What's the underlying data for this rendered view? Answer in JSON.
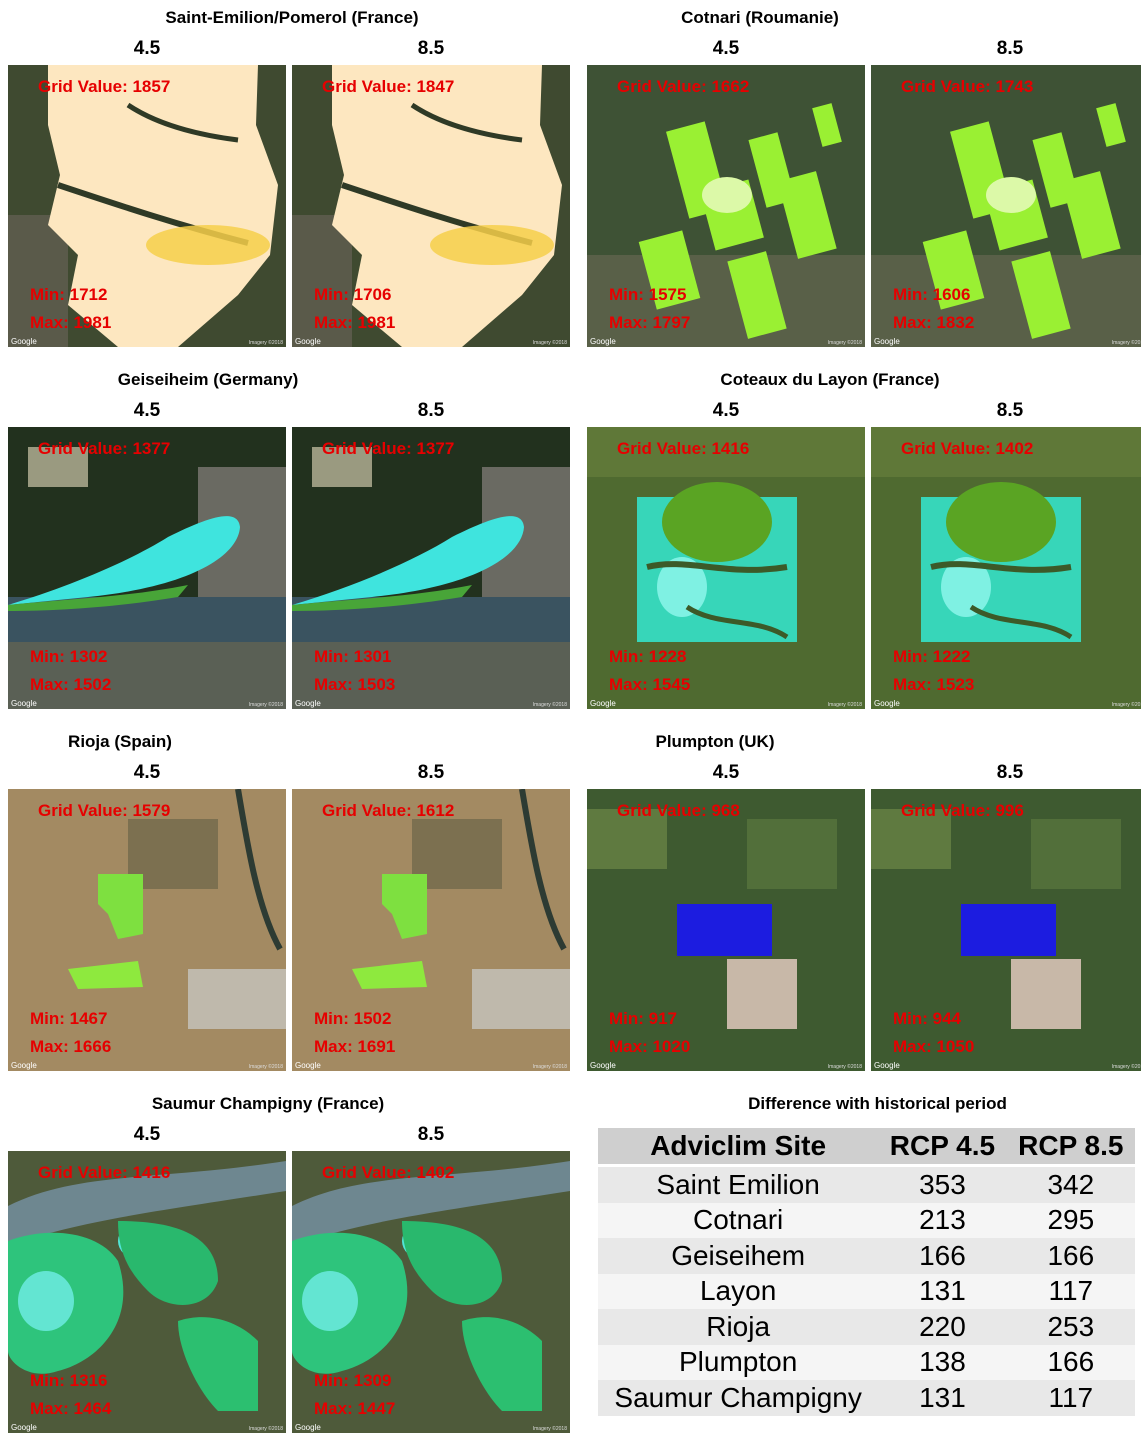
{
  "sites": [
    {
      "id": "saint-emilion",
      "title": "Saint-Emilion/Pomerol (France)",
      "theme": "beige",
      "panels": [
        {
          "scenario": "4.5",
          "grid_value": "Grid Value: 1857",
          "min": "Min: 1712",
          "max": "Max: 1981"
        },
        {
          "scenario": "8.5",
          "grid_value": "Grid Value: 1847",
          "min": "Min: 1706",
          "max": "Max: 1981"
        }
      ]
    },
    {
      "id": "cotnari",
      "title": "Cotnari (Roumanie)",
      "theme": "lime",
      "panels": [
        {
          "scenario": "4.5",
          "grid_value": "Grid Value: 1662",
          "min": "Min: 1575",
          "max": "Max: 1797"
        },
        {
          "scenario": "8.5",
          "grid_value": "Grid Value: 1743",
          "min": "Min: 1606",
          "max": "Max: 1832"
        }
      ]
    },
    {
      "id": "geiseiheim",
      "title": "Geiseiheim (Germany)",
      "theme": "river",
      "panels": [
        {
          "scenario": "4.5",
          "grid_value": "Grid Value: 1377",
          "min": "Min: 1302",
          "max": "Max: 1502"
        },
        {
          "scenario": "8.5",
          "grid_value": "Grid Value: 1377",
          "min": "Min: 1301",
          "max": "Max: 1503"
        }
      ]
    },
    {
      "id": "coteaux-du-layon",
      "title": "Coteaux du Layon (France)",
      "theme": "teal",
      "panels": [
        {
          "scenario": "4.5",
          "grid_value": "Grid Value: 1416",
          "min": "Min: 1228",
          "max": "Max: 1545"
        },
        {
          "scenario": "8.5",
          "grid_value": "Grid Value: 1402",
          "min": "Min: 1222",
          "max": "Max: 1523"
        }
      ]
    },
    {
      "id": "rioja",
      "title": "Rioja (Spain)",
      "theme": "arid",
      "panels": [
        {
          "scenario": "4.5",
          "grid_value": "Grid Value: 1579",
          "min": "Min: 1467",
          "max": "Max: 1666"
        },
        {
          "scenario": "8.5",
          "grid_value": "Grid Value: 1612",
          "min": "Min: 1502",
          "max": "Max: 1691"
        }
      ]
    },
    {
      "id": "plumpton",
      "title": "Plumpton (UK)",
      "theme": "blue",
      "panels": [
        {
          "scenario": "4.5",
          "grid_value": "Grid Value: 968",
          "min": "Min: 917",
          "max": "Max: 1020"
        },
        {
          "scenario": "8.5",
          "grid_value": "Grid Value: 996",
          "min": "Min: 944",
          "max": "Max: 1050"
        }
      ]
    },
    {
      "id": "saumur-champigny",
      "title": "Saumur Champigny (France)",
      "theme": "saumur",
      "panels": [
        {
          "scenario": "4.5",
          "grid_value": "Grid Value: 1416",
          "min": "Min: 1316",
          "max": "Max: 1464"
        },
        {
          "scenario": "8.5",
          "grid_value": "Grid Value: 1402",
          "min": "Min: 1309",
          "max": "Max: 1447"
        }
      ]
    }
  ],
  "map_attribution": {
    "google": "Google",
    "imagery": "Imagery ©2018"
  },
  "table": {
    "title": "Difference with historical period",
    "headers": [
      "Adviclim Site",
      "RCP 4.5",
      "RCP 8.5"
    ],
    "rows": [
      [
        "Saint Emilion",
        "353",
        "342"
      ],
      [
        "Cotnari",
        "213",
        "295"
      ],
      [
        "Geiseihem",
        "166",
        "166"
      ],
      [
        "Layon",
        "131",
        "117"
      ],
      [
        "Rioja",
        "220",
        "253"
      ],
      [
        "Plumpton",
        "138",
        "166"
      ],
      [
        "Saumur Champigny",
        "131",
        "117"
      ]
    ]
  }
}
